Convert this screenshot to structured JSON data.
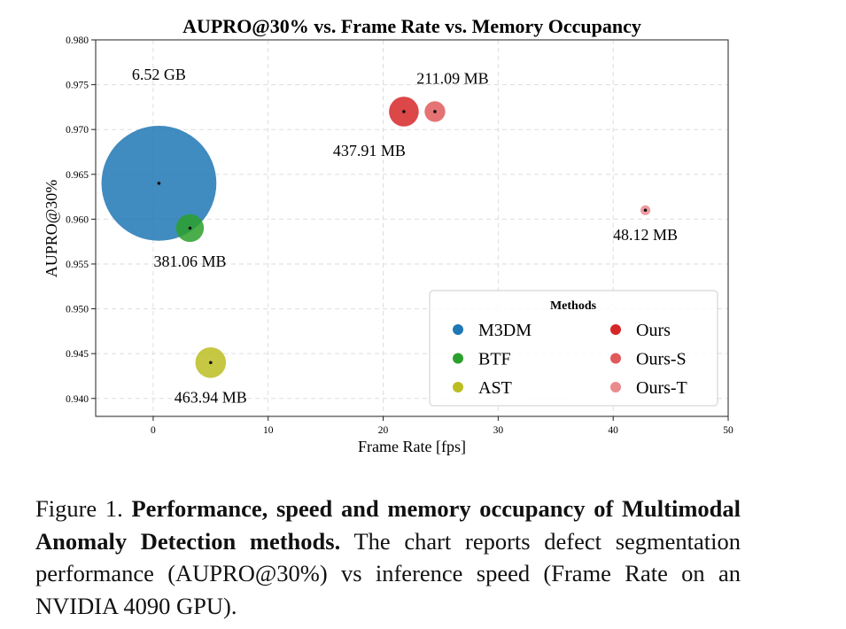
{
  "chart_data": {
    "type": "scatter",
    "title": "AUPRO@30% vs. Frame Rate vs. Memory Occupancy",
    "xlabel": "Frame Rate [fps]",
    "ylabel": "AUPRO@30%",
    "xlim": [
      -5,
      50
    ],
    "ylim": [
      0.938,
      0.98
    ],
    "xticks": [
      0,
      10,
      20,
      30,
      40,
      50
    ],
    "xtick_labels": [
      "0",
      "10",
      "20",
      "30",
      "40",
      "50"
    ],
    "yticks": [
      0.94,
      0.945,
      0.95,
      0.955,
      0.96,
      0.965,
      0.97,
      0.975,
      0.98
    ],
    "ytick_labels": [
      "0.940",
      "0.945",
      "0.950",
      "0.955",
      "0.960",
      "0.965",
      "0.970",
      "0.975",
      "0.980"
    ],
    "grid": true,
    "legend": {
      "title": "Methods",
      "placement": "lower-right"
    },
    "series": [
      {
        "name": "M3DM",
        "x": 0.5,
        "y": 0.964,
        "memory_mb": 6520,
        "label": "6.52 GB",
        "color": "#1f77b4",
        "label_side": "above-left"
      },
      {
        "name": "BTF",
        "x": 3.2,
        "y": 0.959,
        "memory_mb": 381.06,
        "label": "381.06 MB",
        "color": "#2ca02c",
        "label_side": "below"
      },
      {
        "name": "AST",
        "x": 5.0,
        "y": 0.944,
        "memory_mb": 463.94,
        "label": "463.94 MB",
        "color": "#bcbd22",
        "label_side": "below"
      },
      {
        "name": "Ours",
        "x": 21.8,
        "y": 0.972,
        "memory_mb": 437.91,
        "label": "437.91 MB",
        "color": "#d62728",
        "label_side": "below-left"
      },
      {
        "name": "Ours-S",
        "x": 24.5,
        "y": 0.972,
        "memory_mb": 211.09,
        "label": "211.09 MB",
        "color": "#e05a5c",
        "label_side": "above-right"
      },
      {
        "name": "Ours-T",
        "x": 42.8,
        "y": 0.961,
        "memory_mb": 48.12,
        "label": "48.12 MB",
        "color": "#ea8a8d",
        "label_side": "below"
      }
    ]
  },
  "caption": {
    "prefix": "Figure 1. ",
    "bold": "Performance, speed and memory occupancy of Multimodal Anomaly Detection methods.",
    "rest": " The chart reports defect segmentation performance (AUPRO@30%) vs inference speed (Frame Rate on an NVIDIA 4090 GPU)."
  }
}
